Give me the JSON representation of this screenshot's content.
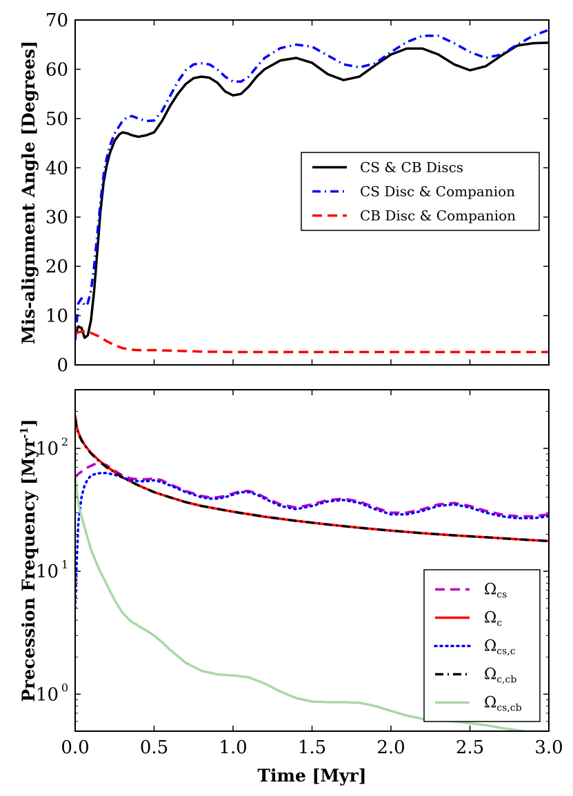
{
  "chart_data": [
    {
      "type": "line",
      "panel": "top",
      "ylabel": "Mis-alignment Angle [Degrees]",
      "xlim": [
        0,
        3.0
      ],
      "ylim": [
        0,
        70
      ],
      "yticks": [
        "0",
        "10",
        "20",
        "30",
        "40",
        "50",
        "60",
        "70"
      ],
      "legend_position": "center-right",
      "series": [
        {
          "name": "CS & CB Discs",
          "color": "#000000",
          "style": "solid",
          "x": [
            0.0,
            0.02,
            0.04,
            0.06,
            0.08,
            0.1,
            0.12,
            0.14,
            0.16,
            0.18,
            0.2,
            0.22,
            0.25,
            0.28,
            0.3,
            0.33,
            0.36,
            0.4,
            0.45,
            0.5,
            0.55,
            0.6,
            0.65,
            0.7,
            0.75,
            0.8,
            0.85,
            0.9,
            0.95,
            1.0,
            1.05,
            1.1,
            1.15,
            1.2,
            1.3,
            1.4,
            1.5,
            1.6,
            1.7,
            1.8,
            1.9,
            2.0,
            2.1,
            2.2,
            2.3,
            2.4,
            2.5,
            2.6,
            2.7,
            2.8,
            2.9,
            3.0
          ],
          "values": [
            6.0,
            7.8,
            7.5,
            5.5,
            6.0,
            9.0,
            15.0,
            23.0,
            31.0,
            37.0,
            40.5,
            43.0,
            45.5,
            46.8,
            47.2,
            47.0,
            46.6,
            46.3,
            46.6,
            47.2,
            49.5,
            52.5,
            55.0,
            57.0,
            58.2,
            58.5,
            58.3,
            57.3,
            55.5,
            54.7,
            55.0,
            56.5,
            58.5,
            60.0,
            61.8,
            62.3,
            61.3,
            59.0,
            57.8,
            58.5,
            60.8,
            63.0,
            64.2,
            64.2,
            63.0,
            61.0,
            59.8,
            60.6,
            62.8,
            64.8,
            65.3,
            65.4
          ]
        },
        {
          "name": "CS Disc & Companion",
          "color": "#0000ff",
          "style": "dashdot",
          "x": [
            0.0,
            0.02,
            0.04,
            0.06,
            0.08,
            0.1,
            0.12,
            0.14,
            0.16,
            0.18,
            0.2,
            0.22,
            0.25,
            0.28,
            0.3,
            0.33,
            0.36,
            0.4,
            0.45,
            0.5,
            0.55,
            0.6,
            0.65,
            0.7,
            0.75,
            0.8,
            0.85,
            0.9,
            0.95,
            1.0,
            1.05,
            1.1,
            1.15,
            1.2,
            1.3,
            1.4,
            1.5,
            1.6,
            1.7,
            1.8,
            1.9,
            2.0,
            2.1,
            2.2,
            2.3,
            2.4,
            2.5,
            2.6,
            2.7,
            2.8,
            2.9,
            3.0
          ],
          "values": [
            5.0,
            12.5,
            13.5,
            12.0,
            12.5,
            15.0,
            20.0,
            26.5,
            33.0,
            38.5,
            42.0,
            44.5,
            47.0,
            48.5,
            49.5,
            50.3,
            50.5,
            50.0,
            49.5,
            49.6,
            51.5,
            54.5,
            57.5,
            59.8,
            61.0,
            61.2,
            61.0,
            60.0,
            58.5,
            57.5,
            57.5,
            58.5,
            60.5,
            62.3,
            64.3,
            65.0,
            64.6,
            62.8,
            61.0,
            60.4,
            61.2,
            63.5,
            65.5,
            66.8,
            66.8,
            65.3,
            63.5,
            62.3,
            63.0,
            65.0,
            66.8,
            68.0
          ]
        },
        {
          "name": "CB Disc & Companion",
          "color": "#ff0000",
          "style": "dashed",
          "x": [
            0.0,
            0.05,
            0.1,
            0.15,
            0.2,
            0.25,
            0.3,
            0.35,
            0.4,
            0.5,
            0.6,
            0.7,
            0.8,
            1.0,
            1.2,
            1.5,
            2.0,
            2.5,
            3.0
          ],
          "values": [
            6.5,
            6.8,
            6.5,
            5.8,
            4.8,
            4.0,
            3.4,
            3.1,
            3.0,
            3.0,
            2.9,
            2.8,
            2.7,
            2.6,
            2.6,
            2.6,
            2.6,
            2.6,
            2.6
          ]
        }
      ]
    },
    {
      "type": "line",
      "panel": "bottom",
      "xlabel": "Time [Myr]",
      "ylabel": "Precession Frequency [Myr^-1]",
      "yscale": "log",
      "xlim": [
        0,
        3.0
      ],
      "ylim": [
        0.5,
        300
      ],
      "xticks": [
        "0.0",
        "0.5",
        "1.0",
        "1.5",
        "2.0",
        "2.5",
        "3.0"
      ],
      "yticks": [
        {
          "value": 1,
          "base": "10",
          "exp": "0"
        },
        {
          "value": 10,
          "base": "10",
          "exp": "1"
        },
        {
          "value": 100,
          "base": "10",
          "exp": "2"
        }
      ],
      "legend_position": "lower-right",
      "series": [
        {
          "name": "Ω_cs",
          "sym": "Ω",
          "sub": "cs",
          "color": "#bf00bf",
          "style": "dashed",
          "x": [
            0.0,
            0.02,
            0.05,
            0.08,
            0.1,
            0.13,
            0.16,
            0.2,
            0.25,
            0.3,
            0.35,
            0.4,
            0.45,
            0.5,
            0.55,
            0.6,
            0.65,
            0.7,
            0.75,
            0.8,
            0.85,
            0.9,
            0.95,
            1.0,
            1.05,
            1.1,
            1.15,
            1.2,
            1.3,
            1.4,
            1.5,
            1.6,
            1.7,
            1.8,
            1.9,
            2.0,
            2.1,
            2.2,
            2.3,
            2.4,
            2.5,
            2.6,
            2.7,
            2.8,
            2.9,
            3.0
          ],
          "values": [
            58,
            62,
            66,
            70,
            72,
            75,
            76,
            73,
            66,
            60,
            57,
            56,
            56,
            57,
            55,
            51,
            48,
            45,
            43,
            41,
            40,
            40,
            41,
            43,
            45,
            45,
            43,
            40,
            35,
            33,
            35,
            38,
            39,
            37,
            33,
            30,
            30,
            32,
            35,
            36,
            34,
            31,
            29,
            28,
            28,
            29
          ]
        },
        {
          "name": "Ω_c",
          "sym": "Ω",
          "sub": "c",
          "color": "#ff0000",
          "style": "solid",
          "x": [
            0.0,
            0.01,
            0.02,
            0.04,
            0.06,
            0.08,
            0.1,
            0.15,
            0.2,
            0.3,
            0.4,
            0.5,
            0.6,
            0.7,
            0.8,
            1.0,
            1.2,
            1.4,
            1.6,
            1.8,
            2.0,
            2.2,
            2.4,
            2.6,
            2.8,
            3.0
          ],
          "values": [
            185,
            150,
            135,
            118,
            107,
            99,
            92,
            80,
            71,
            58,
            50,
            44,
            40,
            36.5,
            34,
            30.5,
            27.8,
            25.7,
            24.0,
            22.6,
            21.4,
            20.4,
            19.6,
            18.9,
            18.2,
            17.6
          ]
        },
        {
          "name": "Ω_cs,c",
          "sym": "Ω",
          "sub": "cs,c",
          "color": "#0000ff",
          "style": "dotted",
          "x": [
            0.0,
            0.01,
            0.02,
            0.04,
            0.06,
            0.08,
            0.1,
            0.13,
            0.16,
            0.2,
            0.25,
            0.3,
            0.35,
            0.4,
            0.45,
            0.5,
            0.55,
            0.6,
            0.65,
            0.7,
            0.75,
            0.8,
            0.85,
            0.9,
            0.95,
            1.0,
            1.05,
            1.1,
            1.15,
            1.2,
            1.3,
            1.4,
            1.5,
            1.6,
            1.7,
            1.8,
            1.9,
            2.0,
            2.1,
            2.2,
            2.3,
            2.4,
            2.5,
            2.6,
            2.7,
            2.8,
            2.9,
            3.0
          ],
          "values": [
            5,
            12,
            25,
            40,
            50,
            56,
            60,
            62,
            63,
            63,
            61,
            58,
            55,
            54,
            54,
            55,
            53,
            50,
            47,
            44,
            42,
            40,
            39,
            39,
            40,
            42,
            44,
            44,
            42,
            39,
            34,
            32,
            34,
            37,
            38,
            36,
            32,
            29,
            29,
            31,
            34,
            35,
            33,
            30,
            28,
            27,
            27,
            28
          ]
        },
        {
          "name": "Ω_c,cb",
          "sym": "Ω",
          "sub": "c,cb",
          "color": "#000000",
          "style": "dashdot",
          "x": [
            0.0,
            0.01,
            0.02,
            0.04,
            0.06,
            0.08,
            0.1,
            0.15,
            0.2,
            0.3,
            0.4,
            0.5,
            0.6,
            0.7,
            0.8,
            1.0,
            1.2,
            1.4,
            1.6,
            1.8,
            2.0,
            2.2,
            2.4,
            2.6,
            2.8,
            3.0
          ],
          "values": [
            175,
            145,
            132,
            116,
            106,
            98,
            91,
            79,
            70,
            58,
            50,
            44,
            40,
            36.5,
            34,
            30.5,
            27.8,
            25.7,
            24.0,
            22.6,
            21.4,
            20.4,
            19.6,
            18.9,
            18.2,
            17.6
          ]
        },
        {
          "name": "Ω_cs,cb",
          "sym": "Ω",
          "sub": "cs,cb",
          "color": "#a8d8a8",
          "style": "solid",
          "x": [
            0.0,
            0.02,
            0.05,
            0.08,
            0.1,
            0.15,
            0.2,
            0.25,
            0.3,
            0.35,
            0.4,
            0.45,
            0.5,
            0.55,
            0.6,
            0.7,
            0.8,
            0.9,
            1.0,
            1.1,
            1.2,
            1.3,
            1.4,
            1.5,
            1.6,
            1.7,
            1.8,
            1.9,
            2.0,
            2.1,
            2.2,
            2.3,
            2.4,
            2.5,
            2.6,
            2.7,
            2.8,
            2.85
          ],
          "values": [
            60,
            35,
            25,
            18.5,
            15,
            10.5,
            7.8,
            5.8,
            4.6,
            3.95,
            3.6,
            3.3,
            3.0,
            2.65,
            2.3,
            1.8,
            1.55,
            1.45,
            1.42,
            1.37,
            1.22,
            1.05,
            0.93,
            0.87,
            0.86,
            0.86,
            0.85,
            0.8,
            0.73,
            0.67,
            0.63,
            0.61,
            0.6,
            0.58,
            0.56,
            0.53,
            0.51,
            0.5
          ]
        }
      ]
    }
  ]
}
